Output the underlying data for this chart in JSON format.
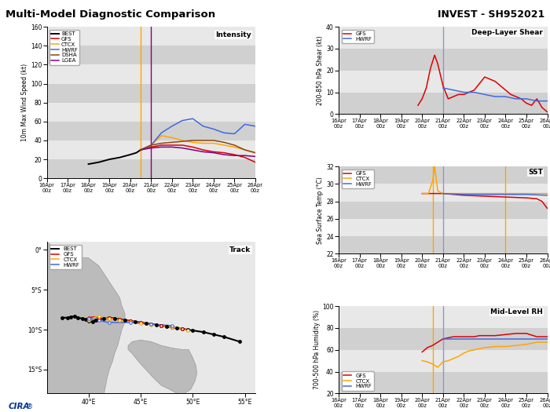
{
  "title_left": "Multi-Model Diagnostic Comparison",
  "title_right": "INVEST - SH952021",
  "x_labels": [
    "16Apr\n00z",
    "17Apr\n00z",
    "18Apr\n00z",
    "19Apr\n00z",
    "20Apr\n00z",
    "21Apr\n00z",
    "22Apr\n00z",
    "23Apr\n00z",
    "24Apr\n00z",
    "25Apr\n00z",
    "26Apr\n00z"
  ],
  "x_ticks": [
    0,
    1,
    2,
    3,
    4,
    5,
    6,
    7,
    8,
    9,
    10
  ],
  "colors": {
    "BEST": "#000000",
    "GFS": "#dd0000",
    "CTCX": "#ffa500",
    "HWRF": "#4169e1",
    "DSHA": "#8b4513",
    "LGEA": "#800080",
    "band_dark": "#d0d0d0",
    "band_light": "#e8e8e8"
  },
  "intensity": {
    "ylabel": "10m Max Wind Speed (kt)",
    "title": "Intensity",
    "ylim": [
      0,
      160
    ],
    "yticks": [
      0,
      20,
      40,
      60,
      80,
      100,
      120,
      140,
      160
    ],
    "vline_orange_x": 4.5,
    "vline_purple_x": 5.0,
    "BEST_x": [
      2.0,
      2.5,
      3.0,
      3.5,
      4.0,
      4.3,
      4.5
    ],
    "BEST_y": [
      15,
      17,
      20,
      22,
      25,
      27,
      30
    ],
    "GFS_x": [
      4.5,
      5.0,
      5.5,
      6.0,
      6.5,
      7.0,
      7.5,
      8.0,
      8.5,
      9.0,
      9.5,
      10.0
    ],
    "GFS_y": [
      30,
      33,
      35,
      35,
      35,
      33,
      30,
      28,
      27,
      25,
      22,
      17
    ],
    "CTCX_x": [
      4.5,
      5.0,
      5.5,
      6.0,
      6.5,
      7.0,
      7.5,
      8.0,
      8.5,
      9.0,
      9.5,
      10.0
    ],
    "CTCX_y": [
      30,
      35,
      45,
      43,
      40,
      38,
      37,
      37,
      35,
      33,
      30,
      27
    ],
    "HWRF_x": [
      4.5,
      5.0,
      5.5,
      6.0,
      6.5,
      7.0,
      7.5,
      8.0,
      8.5,
      9.0,
      9.5,
      10.0
    ],
    "HWRF_y": [
      30,
      35,
      48,
      55,
      61,
      63,
      55,
      52,
      48,
      47,
      57,
      55
    ],
    "DSHA_x": [
      4.5,
      5.0,
      5.5,
      6.0,
      6.5,
      7.0,
      7.5,
      8.0,
      8.5,
      9.0,
      9.5,
      10.0
    ],
    "DSHA_y": [
      30,
      35,
      37,
      38,
      39,
      40,
      40,
      40,
      38,
      35,
      30,
      27
    ],
    "LGEA_x": [
      4.5,
      5.0,
      5.5,
      6.0,
      6.5,
      7.0,
      7.5,
      8.0,
      8.5,
      9.0,
      9.5,
      10.0
    ],
    "LGEA_y": [
      30,
      32,
      33,
      33,
      32,
      30,
      28,
      27,
      25,
      24,
      24,
      23
    ]
  },
  "shear": {
    "ylabel": "200-850 hPa Shear (kt)",
    "title": "Deep-Layer Shear",
    "ylim": [
      0,
      40
    ],
    "yticks": [
      0,
      10,
      20,
      30,
      40
    ],
    "vline_blue_x": 5.0,
    "GFS_x": [
      3.8,
      4.0,
      4.2,
      4.4,
      4.6,
      4.75,
      5.0,
      5.25,
      5.5,
      5.75,
      6.0,
      6.25,
      6.5,
      6.75,
      7.0,
      7.25,
      7.5,
      7.75,
      8.0,
      8.25,
      8.5,
      8.75,
      9.0,
      9.25,
      9.5,
      9.75,
      10.0
    ],
    "GFS_y": [
      4,
      7,
      12,
      21,
      27,
      23,
      13,
      7,
      8,
      9,
      9,
      10,
      11,
      14,
      17,
      16,
      15,
      13,
      11,
      9,
      8,
      7,
      5,
      4,
      7,
      3,
      1
    ],
    "HWRF_x": [
      5.0,
      5.5,
      6.0,
      6.5,
      7.0,
      7.5,
      8.0,
      8.5,
      9.0,
      9.5,
      10.0
    ],
    "HWRF_y": [
      12,
      11,
      10,
      10,
      9,
      8,
      8,
      7,
      7,
      6,
      6
    ]
  },
  "sst": {
    "ylabel": "Sea Surface Temp (°C)",
    "title": "SST",
    "ylim": [
      22,
      32
    ],
    "yticks": [
      22,
      24,
      26,
      28,
      30,
      32
    ],
    "vline_yellow1_x": 4.5,
    "vline_blue_x": 5.0,
    "vline_yellow2_x": 8.0,
    "GFS_x": [
      4.0,
      4.25,
      4.5,
      4.75,
      5.0,
      5.25,
      5.5,
      5.75,
      6.0,
      6.5,
      7.0,
      7.5,
      8.0,
      8.5,
      9.0,
      9.5,
      9.75,
      10.0
    ],
    "GFS_y": [
      28.9,
      28.9,
      28.9,
      28.9,
      28.9,
      28.85,
      28.8,
      28.75,
      28.7,
      28.65,
      28.6,
      28.55,
      28.5,
      28.45,
      28.4,
      28.3,
      28.0,
      27.2
    ],
    "CTCX_x": [
      4.0,
      4.3,
      4.5,
      4.6,
      4.75,
      5.0,
      5.5,
      6.0,
      7.0,
      8.0,
      9.0,
      10.0
    ],
    "CTCX_y": [
      28.9,
      28.9,
      30.3,
      32.0,
      29.2,
      28.9,
      28.9,
      28.9,
      28.9,
      28.9,
      28.9,
      28.9
    ],
    "HWRF_x": [
      5.0,
      5.5,
      6.0,
      6.5,
      7.0,
      7.5,
      8.0,
      8.5,
      9.0,
      9.5,
      10.0
    ],
    "HWRF_y": [
      28.9,
      28.85,
      28.8,
      28.8,
      28.8,
      28.8,
      28.8,
      28.8,
      28.8,
      28.75,
      28.7
    ]
  },
  "rh": {
    "ylabel": "700-500 hPa Humidity (%)",
    "title": "Mid-Level RH",
    "ylim": [
      20,
      100
    ],
    "yticks": [
      20,
      40,
      60,
      80,
      100
    ],
    "vline_yellow_x": 4.5,
    "vline_blue_x": 5.0,
    "GFS_x": [
      4.0,
      4.25,
      4.5,
      4.75,
      5.0,
      5.25,
      5.5,
      5.75,
      6.0,
      6.25,
      6.5,
      6.75,
      7.0,
      7.5,
      8.0,
      8.5,
      9.0,
      9.5,
      9.75,
      10.0
    ],
    "GFS_y": [
      58,
      62,
      64,
      67,
      70,
      71,
      72,
      72,
      72,
      72,
      72,
      73,
      73,
      73,
      74,
      75,
      75,
      72,
      72,
      72
    ],
    "CTCX_x": [
      4.0,
      4.25,
      4.5,
      4.75,
      5.0,
      5.25,
      5.5,
      5.75,
      6.0,
      6.25,
      6.5,
      6.75,
      7.0,
      7.5,
      8.0,
      8.5,
      9.0,
      9.5,
      10.0
    ],
    "CTCX_y": [
      50,
      49,
      47,
      44,
      49,
      50,
      52,
      54,
      57,
      59,
      60,
      61,
      62,
      63,
      63,
      64,
      65,
      67,
      67
    ],
    "HWRF_x": [
      5.0,
      5.5,
      6.0,
      6.5,
      7.0,
      7.5,
      8.0,
      8.5,
      9.0,
      9.5,
      10.0
    ],
    "HWRF_y": [
      70,
      70,
      70,
      70,
      70,
      70,
      70,
      70,
      70,
      70,
      70
    ]
  },
  "track": {
    "title": "Track",
    "xlim": [
      36,
      56
    ],
    "ylim": [
      -18,
      1
    ],
    "xticks": [
      40,
      45,
      50,
      55
    ],
    "yticks": [
      0,
      -5,
      -10,
      -15
    ],
    "map_bg": "#e8e8e8",
    "land_color": "#bbbbbb",
    "land_edge": "#999999",
    "BEST_x": [
      37.5,
      38.0,
      38.3,
      38.7,
      39.0,
      39.4,
      39.7,
      40.0,
      40.4,
      40.7,
      41.0,
      41.5,
      42.0,
      42.5,
      43.0,
      43.5,
      44.0,
      44.5,
      45.0,
      45.5,
      46.0,
      46.5,
      47.0,
      47.5,
      48.0,
      48.5,
      49.0,
      49.5,
      50.0,
      51.0,
      52.0,
      53.0,
      54.5
    ],
    "BEST_y": [
      -8.5,
      -8.5,
      -8.4,
      -8.3,
      -8.5,
      -8.6,
      -8.7,
      -8.9,
      -9.0,
      -8.8,
      -8.7,
      -8.6,
      -8.5,
      -8.6,
      -8.7,
      -8.8,
      -8.9,
      -9.0,
      -9.1,
      -9.2,
      -9.3,
      -9.4,
      -9.5,
      -9.6,
      -9.7,
      -9.8,
      -9.9,
      -10.0,
      -10.1,
      -10.3,
      -10.6,
      -10.9,
      -11.5
    ],
    "GFS_x": [
      40.0,
      40.5,
      41.0,
      41.5,
      42.0,
      42.5,
      43.0,
      43.5,
      44.0,
      44.5,
      45.0,
      46.0,
      47.0,
      48.0,
      49.0
    ],
    "GFS_y": [
      -8.5,
      -8.4,
      -8.5,
      -8.6,
      -8.5,
      -8.6,
      -8.7,
      -8.8,
      -8.9,
      -9.0,
      -9.1,
      -9.3,
      -9.5,
      -9.7,
      -9.9
    ],
    "CTCX_x": [
      40.0,
      40.5,
      41.0,
      41.5,
      42.0,
      42.5,
      43.0,
      43.5,
      44.0,
      44.5,
      45.0,
      45.5,
      46.0,
      47.0,
      48.0,
      49.0,
      49.5
    ],
    "CTCX_y": [
      -8.8,
      -8.5,
      -8.3,
      -8.5,
      -8.6,
      -8.7,
      -8.8,
      -8.9,
      -9.0,
      -9.1,
      -9.2,
      -9.3,
      -9.4,
      -9.5,
      -9.7,
      -9.9,
      -10.1
    ],
    "HWRF_x": [
      40.0,
      40.5,
      41.0,
      41.5,
      42.0,
      43.0,
      44.0,
      45.0,
      46.0,
      47.0,
      48.0
    ],
    "HWRF_y": [
      -8.6,
      -8.7,
      -8.8,
      -9.0,
      -9.1,
      -9.1,
      -9.1,
      -9.2,
      -9.3,
      -9.4,
      -9.5
    ]
  }
}
